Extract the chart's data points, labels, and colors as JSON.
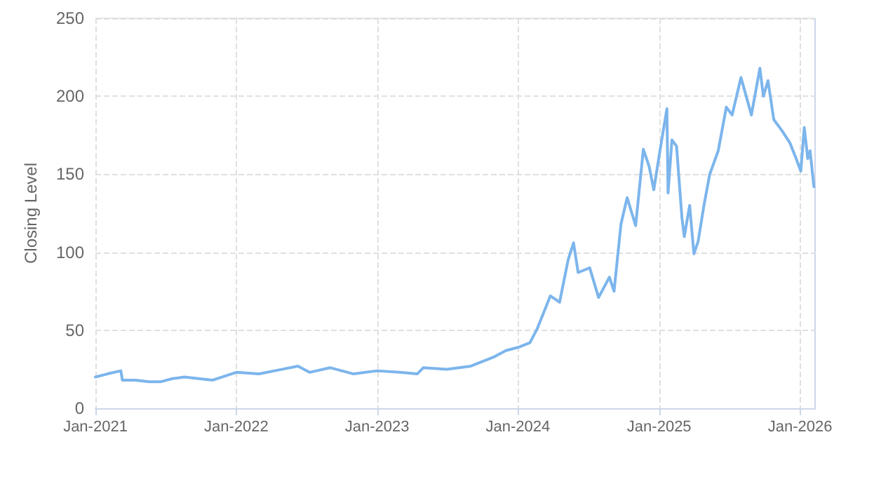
{
  "chart_data": {
    "type": "line",
    "ylabel": "Closing Level",
    "x": [
      "2021-01-01",
      "2021-02-01",
      "2021-03-08",
      "2021-03-12",
      "2021-04-15",
      "2021-05-20",
      "2021-06-20",
      "2021-07-20",
      "2021-08-20",
      "2021-09-25",
      "2021-11-01",
      "2022-01-01",
      "2022-03-01",
      "2022-05-01",
      "2022-06-10",
      "2022-07-10",
      "2022-09-01",
      "2022-11-01",
      "2023-01-01",
      "2023-03-01",
      "2023-04-15",
      "2023-05-01",
      "2023-07-01",
      "2023-09-01",
      "2023-11-01",
      "2023-12-01",
      "2024-01-01",
      "2024-02-01",
      "2024-02-20",
      "2024-03-25",
      "2024-04-18",
      "2024-05-10",
      "2024-05-24",
      "2024-06-05",
      "2024-07-05",
      "2024-07-28",
      "2024-08-25",
      "2024-09-06",
      "2024-09-24",
      "2024-10-10",
      "2024-11-01",
      "2024-11-21",
      "2024-12-06",
      "2024-12-18",
      "2025-01-03",
      "2025-01-21",
      "2025-01-24",
      "2025-02-03",
      "2025-02-15",
      "2025-03-01",
      "2025-03-07",
      "2025-03-21",
      "2025-04-01",
      "2025-04-12",
      "2025-04-27",
      "2025-05-12",
      "2025-06-03",
      "2025-06-24",
      "2025-07-09",
      "2025-08-01",
      "2025-08-28",
      "2025-09-19",
      "2025-09-28",
      "2025-10-10",
      "2025-10-25",
      "2025-11-15",
      "2025-12-06",
      "2025-12-22",
      "2026-01-03",
      "2026-01-12",
      "2026-01-21",
      "2026-01-27",
      "2026-02-06"
    ],
    "series": [
      {
        "color": "#7cb5ec",
        "values": [
          20,
          22,
          24,
          18,
          18,
          17,
          17,
          19,
          20,
          19,
          18,
          23,
          22,
          25,
          27,
          23,
          26,
          22,
          24,
          23,
          22,
          26,
          25,
          27,
          33,
          37,
          39,
          42,
          51,
          72,
          68,
          95,
          106,
          87,
          90,
          71,
          84,
          75,
          118,
          135,
          117,
          166,
          155,
          140,
          165,
          192,
          138,
          172,
          168,
          122,
          110,
          130,
          99,
          107,
          130,
          150,
          165,
          193,
          188,
          212,
          188,
          218,
          200,
          210,
          185,
          178,
          170,
          160,
          152,
          180,
          160,
          165,
          142
        ]
      }
    ],
    "xlim": [
      "2021-01-01",
      "2026-02-09"
    ],
    "xticks": [
      {
        "value": "2021-01-01",
        "label": "Jan-2021"
      },
      {
        "value": "2022-01-01",
        "label": "Jan-2022"
      },
      {
        "value": "2023-01-01",
        "label": "Jan-2023"
      },
      {
        "value": "2024-01-01",
        "label": "Jan-2024"
      },
      {
        "value": "2025-01-01",
        "label": "Jan-2025"
      },
      {
        "value": "2026-01-01",
        "label": "Jan-2026"
      }
    ],
    "ylim": [
      0,
      250
    ],
    "yticks": [
      0,
      50,
      100,
      150,
      200,
      250
    ],
    "grid": true,
    "marker": "none",
    "line_style": "solid"
  }
}
